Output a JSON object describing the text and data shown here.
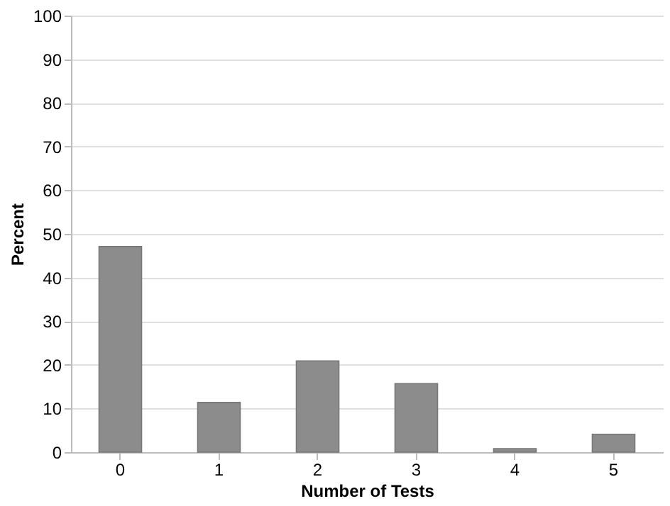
{
  "chart_data": {
    "type": "bar",
    "xlabel": "Number of Tests",
    "ylabel": "Percent",
    "categories": [
      "0",
      "1",
      "2",
      "3",
      "4",
      "5"
    ],
    "values": [
      47.1,
      11.4,
      20.9,
      15.7,
      0.8,
      4.1
    ],
    "color": "#8c8c8c",
    "ylim": [
      0,
      100
    ],
    "yticks": [
      0,
      10,
      20,
      30,
      40,
      50,
      60,
      70,
      80,
      90,
      100
    ],
    "grid": "y"
  }
}
